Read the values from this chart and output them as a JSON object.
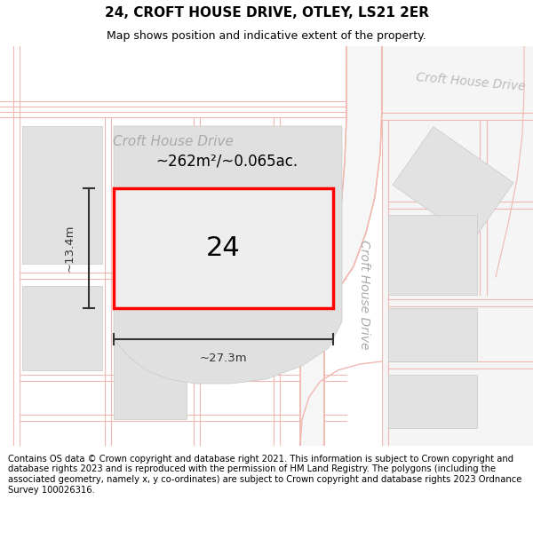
{
  "title": "24, CROFT HOUSE DRIVE, OTLEY, LS21 2ER",
  "subtitle": "Map shows position and indicative extent of the property.",
  "footer": "Contains OS data © Crown copyright and database right 2021. This information is subject to Crown copyright and database rights 2023 and is reproduced with the permission of HM Land Registry. The polygons (including the associated geometry, namely x, y co-ordinates) are subject to Crown copyright and database rights 2023 Ordnance Survey 100026316.",
  "map_bg": "#f7f6f6",
  "road_color": "#f0b8b0",
  "parcel_color": "#e2e2e2",
  "parcel_edge": "#c8c8c8",
  "plot_fill": "#e8e8e8",
  "plot_edge": "#ff0000",
  "meas_color": "#333333",
  "street_color": "#aaaaaa",
  "area_text": "~262m²/~0.065ac.",
  "number_text": "24",
  "dim_h": "~13.4m",
  "dim_w": "~27.3m",
  "street_h": "Croft House Drive",
  "street_v": "Croft House Drive",
  "street_tr": "Croft House Drive",
  "title_fontsize": 11,
  "subtitle_fontsize": 9,
  "footer_fontsize": 7.2
}
